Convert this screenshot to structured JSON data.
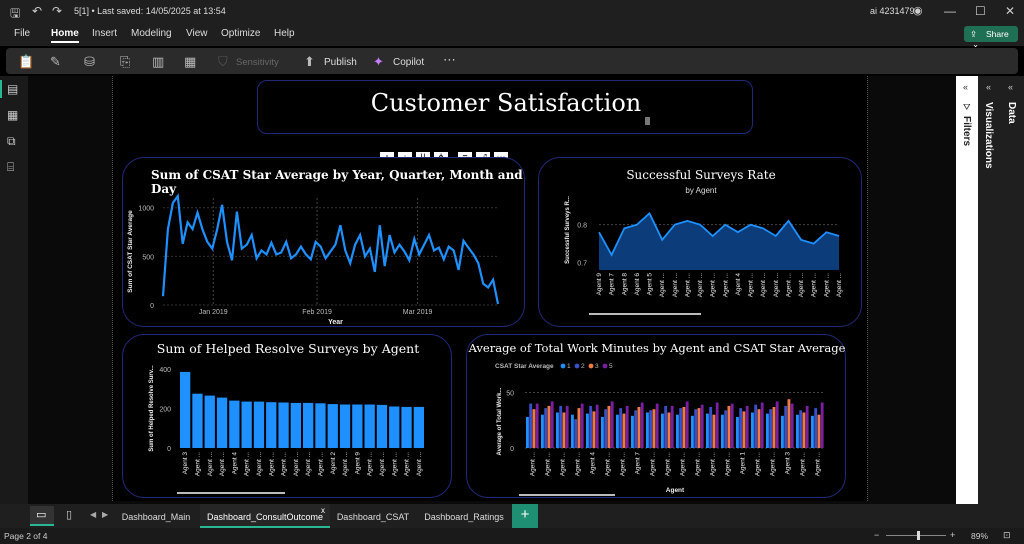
{
  "titlebar": {
    "doc_title": "5[1] • Last saved: 14/05/2025 at 13:54",
    "user": "ai 4231479"
  },
  "menu": [
    "File",
    "Home",
    "Insert",
    "Modeling",
    "View",
    "Optimize",
    "Help"
  ],
  "share_label": "Share",
  "ribbon": {
    "sensitivity": "Sensitivity",
    "publish": "Publish",
    "copilot": "Copilot"
  },
  "panes": {
    "filters": "Filters",
    "visualizations": "Visualizations",
    "data": "Data"
  },
  "report_title": "Customer Satisfaction",
  "tabs": [
    "Dashboard_Main",
    "Dashboard_ConsultOutcome",
    "Dashboard_CSAT",
    "Dashboard_Ratings"
  ],
  "status": {
    "page": "Page 2 of 4",
    "zoom": "89%"
  },
  "colors": {
    "accent": "#1e90ff",
    "area": "#0c3c7a",
    "card_border": "#1e2a78",
    "tab_active": "#2ab894"
  },
  "chart_data": [
    {
      "type": "line",
      "title": "Sum of CSAT Star Average by Year, Quarter, Month and Day",
      "xlabel": "Year",
      "ylabel": "Sum of CSAT Star Average",
      "x_ticks": [
        "Jan 2019",
        "Feb 2019",
        "Mar 2019"
      ],
      "y_ticks": [
        "0",
        "500",
        "1000"
      ],
      "ylim": [
        0,
        1100
      ],
      "values": [
        90,
        780,
        1050,
        1120,
        630,
        850,
        780,
        950,
        780,
        650,
        580,
        780,
        1030,
        650,
        460,
        960,
        580,
        620,
        720,
        480,
        560,
        520,
        640,
        520,
        540,
        650,
        480,
        520,
        600,
        520,
        470,
        650,
        600,
        480,
        550,
        620,
        820,
        560,
        430,
        620,
        720,
        500,
        580,
        340,
        820,
        400,
        720,
        540,
        620,
        550,
        460,
        680,
        520,
        620,
        720,
        560,
        590,
        470,
        600,
        560,
        360,
        660,
        590,
        520,
        430,
        220,
        180,
        260,
        10
      ]
    },
    {
      "type": "area",
      "title": "Successful Surveys Rate",
      "subtitle": "by Agent",
      "ylabel": "Successful Surveys R...",
      "x_ticks": [
        "Agent 9",
        "Agent 7",
        "Agent 8",
        "Agent 6",
        "Agent 5",
        "Agent ...",
        "Agent ...",
        "Agent ...",
        "Agent ...",
        "Agent ...",
        "Agent ...",
        "Agent 4",
        "Agent ...",
        "Agent ...",
        "Agent ...",
        "Agent ...",
        "Agent ...",
        "Agent ...",
        "Agent ...",
        "Agent ..."
      ],
      "y_ticks": [
        "0.7",
        "0.8"
      ],
      "ylim": [
        0.68,
        0.86
      ],
      "values": [
        0.78,
        0.72,
        0.79,
        0.8,
        0.83,
        0.76,
        0.8,
        0.81,
        0.8,
        0.77,
        0.8,
        0.78,
        0.8,
        0.79,
        0.77,
        0.81,
        0.76,
        0.75,
        0.78,
        0.77
      ]
    },
    {
      "type": "bar",
      "title": "Sum of Helped Resolve Surveys by Agent",
      "ylabel": "Sum of Helped Resolve Surv...",
      "y_ticks": [
        "0",
        "200",
        "400"
      ],
      "ylim": [
        0,
        420
      ],
      "categories": [
        "Agent 3",
        "Agent ...",
        "Agent ...",
        "Agent ...",
        "Agent 4",
        "Agent ...",
        "Agent ...",
        "Agent ...",
        "Agent ...",
        "Agent ...",
        "Agent ...",
        "Agent ...",
        "Agent 2",
        "Agent ...",
        "Agent 9",
        "Agent ...",
        "Agent ...",
        "Agent ...",
        "Agent ...",
        "Agent ..."
      ],
      "values": [
        385,
        275,
        265,
        255,
        240,
        235,
        235,
        232,
        230,
        228,
        228,
        226,
        222,
        220,
        220,
        220,
        218,
        210,
        208,
        208
      ]
    },
    {
      "type": "bar",
      "title": "Average of Total Work Minutes by Agent and CSAT Star Average",
      "legend_title": "CSAT Star Average",
      "xlabel": "Agent",
      "ylabel": "Average of Total Work...",
      "y_ticks": [
        "0",
        "50"
      ],
      "ylim": [
        0,
        55
      ],
      "categories": [
        "Agent ...",
        "Agent ...",
        "Agent ...",
        "Agent ...",
        "Agent 4",
        "Agent ...",
        "Agent ...",
        "Agent 7",
        "Agent ...",
        "Agent ...",
        "Agent ...",
        "Agent ...",
        "Agent ...",
        "Agent ...",
        "Agent 1",
        "Agent ...",
        "Agent ...",
        "Agent 3",
        "Agent ...",
        "Agent ..."
      ],
      "series": [
        {
          "name": "1",
          "color": "#1e90ff",
          "values": [
            28,
            30,
            32,
            30,
            31,
            28,
            30,
            29,
            32,
            31,
            30,
            29,
            31,
            30,
            28,
            32,
            31,
            29,
            30,
            29
          ]
        },
        {
          "name": "2",
          "color": "#3a4fc8",
          "values": [
            40,
            36,
            38,
            26,
            38,
            35,
            36,
            34,
            34,
            38,
            36,
            35,
            37,
            34,
            36,
            39,
            35,
            38,
            34,
            36
          ]
        },
        {
          "name": "3",
          "color": "#f07a44",
          "values": [
            35,
            38,
            32,
            36,
            33,
            38,
            31,
            37,
            35,
            32,
            37,
            36,
            30,
            38,
            33,
            35,
            37,
            44,
            32,
            30
          ]
        },
        {
          "name": "5",
          "color": "#7a1fa2",
          "values": [
            40,
            42,
            38,
            40,
            39,
            42,
            38,
            41,
            40,
            38,
            42,
            39,
            41,
            40,
            38,
            41,
            42,
            40,
            38,
            41
          ]
        }
      ]
    }
  ]
}
